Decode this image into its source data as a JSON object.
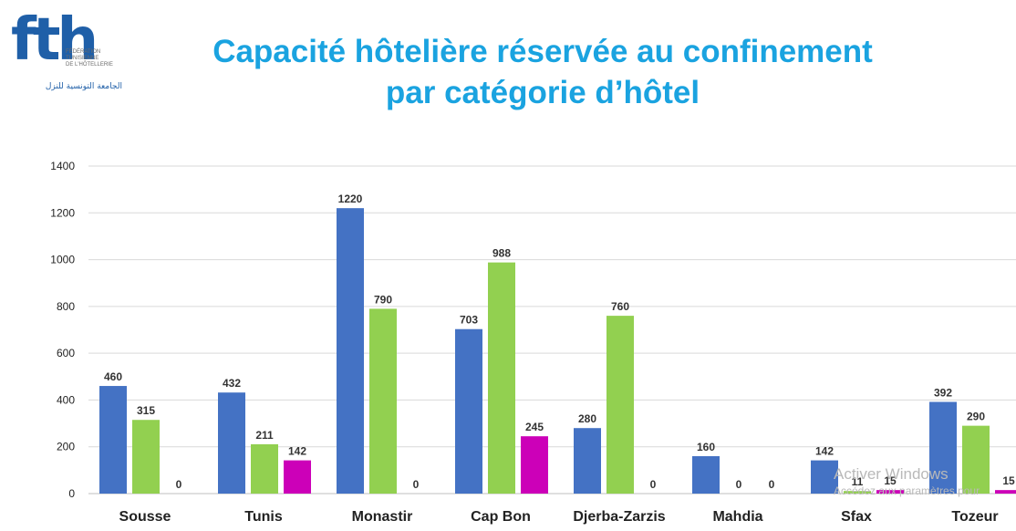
{
  "logo": {
    "mark": "fth",
    "lines": [
      "FÉDÉRATION",
      "TUNISIENNE",
      "DE L'HÔTELLERIE"
    ],
    "arabic": "الجامعة التونسية للنزل"
  },
  "title_lines": [
    "Capacité hôtelière réservée au confinement",
    "par catégorie d’hôtel"
  ],
  "watermark": {
    "line1": "Activer Windows",
    "line2": "Accédez aux paramètres pour"
  },
  "colors": {
    "title": "#1aa3e0",
    "series": [
      "#4472c4",
      "#92d050",
      "#cc00b8"
    ]
  },
  "chart_data": {
    "type": "bar",
    "title": "Capacité hôtelière réservée au confinement par catégorie d’hôtel",
    "xlabel": "",
    "ylabel": "",
    "ylim": [
      0,
      1400
    ],
    "yticks": [
      0,
      200,
      400,
      600,
      800,
      1000,
      1200,
      1400
    ],
    "grid": true,
    "legend": "none",
    "categories": [
      "Sousse",
      "Tunis",
      "Monastir",
      "Cap Bon",
      "Djerba-Zarzis",
      "Mahdia",
      "Sfax",
      "Tozeur"
    ],
    "series": [
      {
        "color": "#4472c4",
        "values": [
          460,
          432,
          1220,
          703,
          280,
          160,
          142,
          392
        ]
      },
      {
        "color": "#92d050",
        "values": [
          315,
          211,
          790,
          988,
          760,
          0,
          11,
          290
        ]
      },
      {
        "color": "#cc00b8",
        "values": [
          0,
          142,
          0,
          245,
          0,
          0,
          15,
          15
        ]
      }
    ]
  }
}
